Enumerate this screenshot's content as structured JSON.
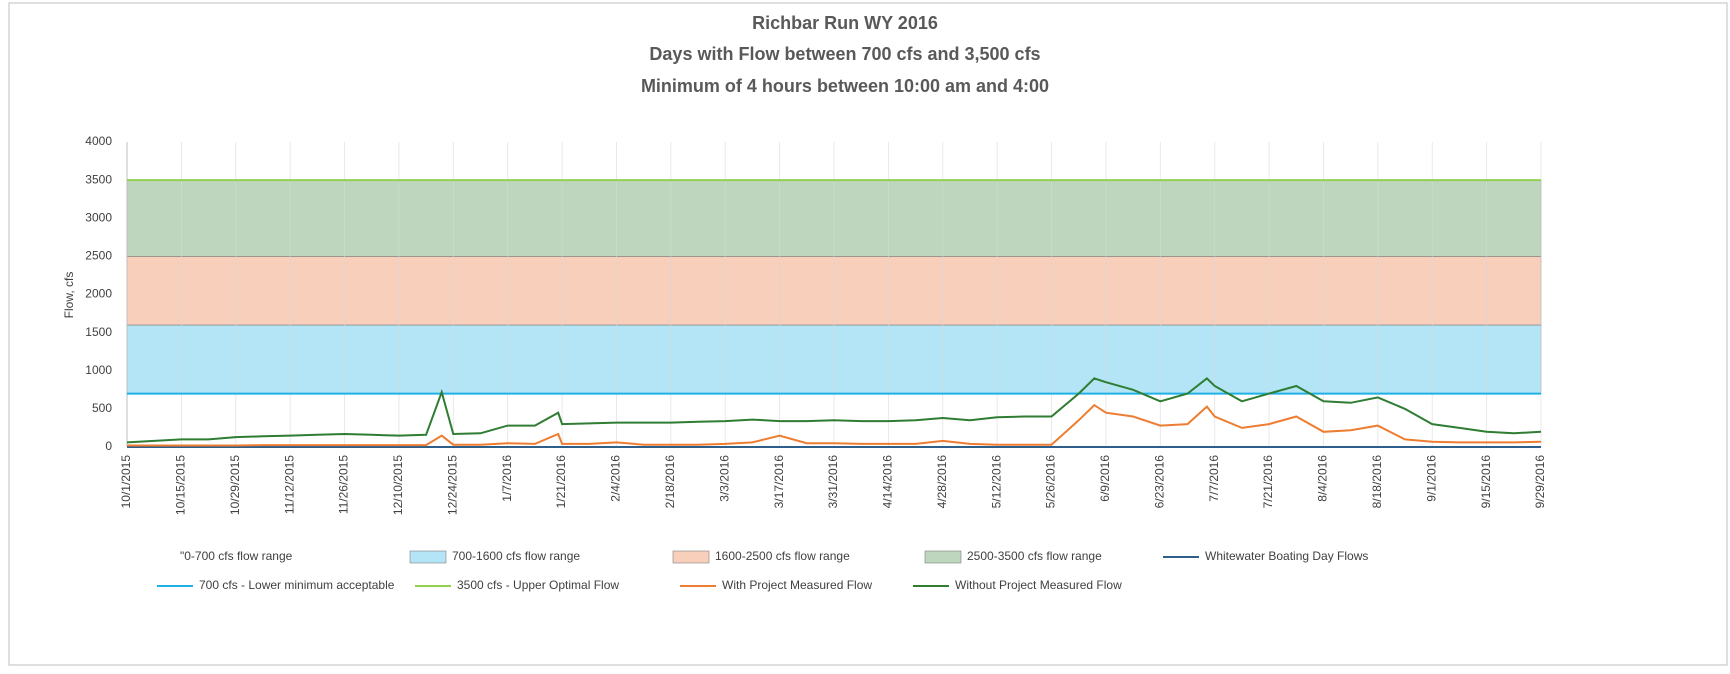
{
  "chart_data": {
    "type": "line",
    "title": "Richbar Run WY 2016",
    "subtitles": [
      "Days with Flow between 700 cfs and 3,500 cfs",
      "Minimum of 4 hours between 10:00 am and 4:00"
    ],
    "y_label": "Flow, cfs",
    "ylim": [
      0,
      4000
    ],
    "yticks": [
      0,
      500,
      1000,
      1500,
      2000,
      2500,
      3000,
      3500,
      4000
    ],
    "xlim": [
      "10/1/2015",
      "9/29/2016"
    ],
    "xticks": [
      "10/1/2015",
      "10/15/2015",
      "10/29/2015",
      "11/12/2015",
      "11/26/2015",
      "12/10/2015",
      "12/24/2015",
      "1/7/2016",
      "1/21/2016",
      "2/4/2016",
      "2/18/2016",
      "3/3/2016",
      "3/17/2016",
      "3/31/2016",
      "4/14/2016",
      "4/28/2016",
      "5/12/2016",
      "5/26/2016",
      "6/9/2016",
      "6/23/2016",
      "7/7/2016",
      "7/21/2016",
      "8/4/2016",
      "8/18/2016",
      "9/1/2016",
      "9/15/2016",
      "9/29/2016"
    ],
    "grid": "x",
    "bands": [
      {
        "name": "\"0-700 cfs flow range",
        "from": 0,
        "to": 700,
        "color": null
      },
      {
        "name": "700-1600 cfs flow range",
        "from": 700,
        "to": 1600,
        "color": "#b3e5f6"
      },
      {
        "name": "1600-2500 cfs flow range",
        "from": 1600,
        "to": 2500,
        "color": "#f8cfbb"
      },
      {
        "name": "2500-3500 cfs flow range",
        "from": 2500,
        "to": 3500,
        "color": "#bdd6bd"
      }
    ],
    "hlines": [
      {
        "name": "Whitewater Boating Day Flows",
        "value": 0,
        "color": "#2e5f8a"
      },
      {
        "name": "700 cfs - Lower minimum acceptable",
        "value": 700,
        "color": "#1fb0e4"
      },
      {
        "name": "3500 cfs - Upper Optimal Flow",
        "value": 3500,
        "color": "#92d050"
      }
    ],
    "x": [
      "10/1/2015",
      "10/8/2015",
      "10/15/2015",
      "10/22/2015",
      "10/29/2015",
      "11/5/2015",
      "11/12/2015",
      "11/19/2015",
      "11/26/2015",
      "12/3/2015",
      "12/10/2015",
      "12/17/2015",
      "12/21/2015",
      "12/24/2015",
      "12/31/2015",
      "1/7/2016",
      "1/14/2016",
      "1/20/2016",
      "1/21/2016",
      "1/28/2016",
      "2/4/2016",
      "2/11/2016",
      "2/18/2016",
      "2/25/2016",
      "3/3/2016",
      "3/10/2016",
      "3/17/2016",
      "3/24/2016",
      "3/31/2016",
      "4/7/2016",
      "4/14/2016",
      "4/21/2016",
      "4/28/2016",
      "5/5/2016",
      "5/12/2016",
      "5/19/2016",
      "5/26/2016",
      "6/2/2016",
      "6/6/2016",
      "6/9/2016",
      "6/16/2016",
      "6/23/2016",
      "6/30/2016",
      "7/5/2016",
      "7/7/2016",
      "7/14/2016",
      "7/21/2016",
      "7/28/2016",
      "8/4/2016",
      "8/11/2016",
      "8/18/2016",
      "8/25/2016",
      "9/1/2016",
      "9/8/2016",
      "9/15/2016",
      "9/22/2016",
      "9/29/2016"
    ],
    "series": [
      {
        "name": "With Project Measured Flow",
        "color": "#ed7d31",
        "values": [
          20,
          20,
          20,
          20,
          20,
          25,
          25,
          25,
          25,
          25,
          25,
          25,
          150,
          30,
          30,
          50,
          40,
          170,
          40,
          40,
          60,
          30,
          30,
          30,
          40,
          60,
          150,
          50,
          50,
          40,
          40,
          40,
          80,
          40,
          30,
          30,
          30,
          350,
          550,
          450,
          400,
          280,
          300,
          530,
          400,
          250,
          300,
          400,
          200,
          220,
          280,
          100,
          70,
          60,
          60,
          60,
          70
        ]
      },
      {
        "name": "Without Project Measured Flow",
        "color": "#2e7d32",
        "values": [
          60,
          80,
          100,
          100,
          130,
          140,
          150,
          160,
          170,
          160,
          150,
          160,
          720,
          170,
          180,
          280,
          280,
          450,
          300,
          310,
          320,
          320,
          320,
          330,
          340,
          360,
          340,
          340,
          350,
          340,
          340,
          350,
          380,
          350,
          390,
          400,
          400,
          700,
          900,
          850,
          750,
          600,
          700,
          900,
          800,
          600,
          700,
          800,
          600,
          580,
          650,
          500,
          300,
          250,
          200,
          180,
          200
        ]
      }
    ]
  }
}
